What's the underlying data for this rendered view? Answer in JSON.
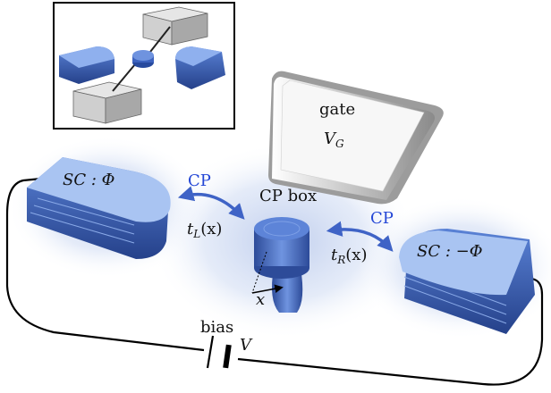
{
  "labels": {
    "gate": "gate",
    "gate_voltage": "V",
    "gate_voltage_sub": "G",
    "cp_box": "CP box",
    "sc_left": "SC : Φ",
    "sc_right": "SC : −Φ",
    "cp_left": "CP",
    "cp_right": "CP",
    "t_left": "t",
    "t_left_sub": "L",
    "t_left_arg": "(x)",
    "t_right": "t",
    "t_right_sub": "R",
    "t_right_arg": "(x)",
    "x_axis": "x",
    "bias": "bias",
    "bias_voltage": "V"
  },
  "colors": {
    "sc_top": "#a9c4f2",
    "sc_side": "#3f66bd",
    "sc_dark": "#2a4a96",
    "cp_arrow": "#3f63c6",
    "cp_text": "#2346d6",
    "gate_fill": "#f4f4f4",
    "glow": "#c9d6f0",
    "circuit": "#000000",
    "inset_gray": "#c2c2c2"
  }
}
